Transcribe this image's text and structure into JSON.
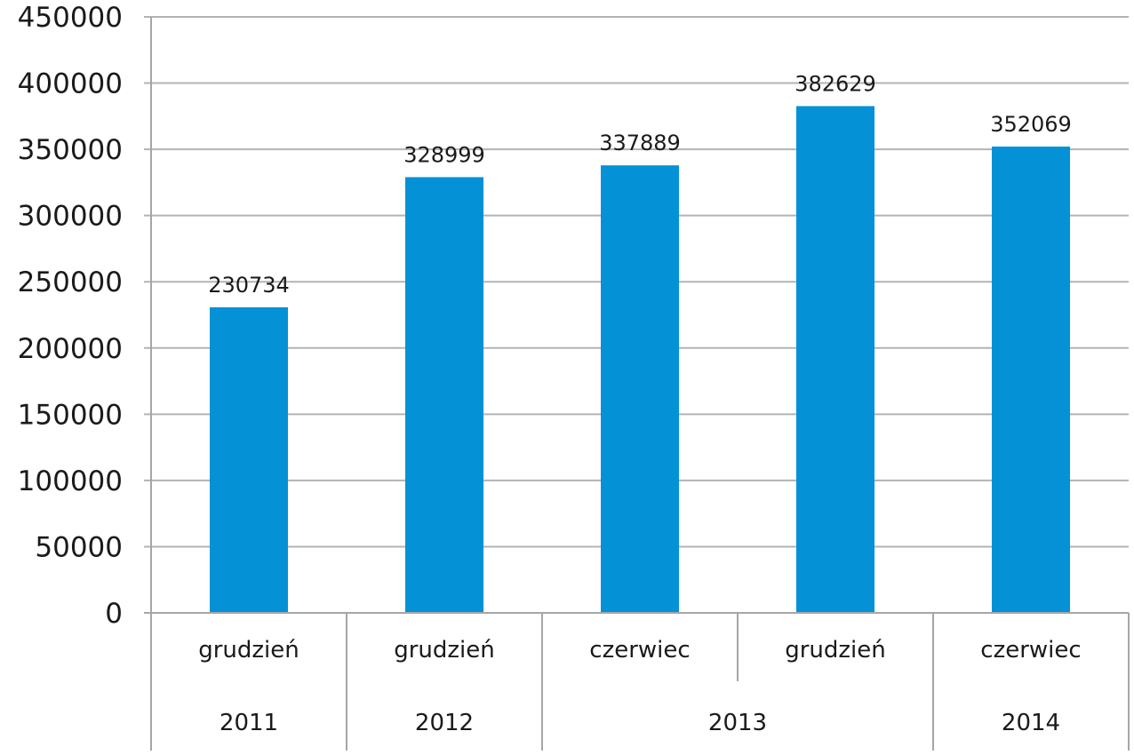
{
  "chart_data": {
    "type": "bar",
    "categories": [
      "grudzień",
      "grudzień",
      "czerwiec",
      "grudzień",
      "czerwiec"
    ],
    "year_groups": [
      {
        "label": "2011",
        "span": 1
      },
      {
        "label": "2012",
        "span": 1
      },
      {
        "label": "2013",
        "span": 2
      },
      {
        "label": "2014",
        "span": 1
      }
    ],
    "values": [
      230734,
      328999,
      337889,
      382629,
      352069
    ],
    "data_labels": [
      "230734",
      "328999",
      "337889",
      "382629",
      "352069"
    ],
    "y_ticks": [
      "0",
      "50000",
      "100000",
      "150000",
      "200000",
      "250000",
      "300000",
      "350000",
      "400000",
      "450000"
    ],
    "ylim": [
      0,
      450000
    ],
    "ytick_step": 50000,
    "grid": true,
    "legend": "none",
    "bar_color": "#0591d6",
    "title": "",
    "xlabel": "",
    "ylabel": ""
  }
}
